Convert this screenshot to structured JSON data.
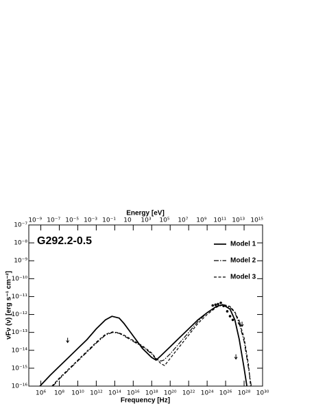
{
  "chart_data": {
    "type": "line",
    "xscale": "log",
    "yscale": "log",
    "annotation": "G292.2-0.5",
    "xlabel": "Frequency [Hz]",
    "ylabel": "νFν (ν) [erg s⁻¹ cm⁻²]",
    "x2label": "Energy [eV]",
    "xlim": [
      50000,
      1e+30
    ],
    "ylim": [
      1e-16,
      1e-07
    ],
    "x2lim": [
      2.07e-10,
      4140000000000000.0
    ],
    "xticks": [
      {
        "value": 1000000.0,
        "label": "10⁶"
      },
      {
        "value": 100000000.0,
        "label": "10⁸"
      },
      {
        "value": 10000000000.0,
        "label": "10¹⁰"
      },
      {
        "value": 1000000000000.0,
        "label": "10¹²"
      },
      {
        "value": 100000000000000.0,
        "label": "10¹⁴"
      },
      {
        "value": 1e+16,
        "label": "10¹⁶"
      },
      {
        "value": 1e+18,
        "label": "10¹⁸"
      },
      {
        "value": 1e+20,
        "label": "10²⁰"
      },
      {
        "value": 1e+22,
        "label": "10²²"
      },
      {
        "value": 1e+24,
        "label": "10²⁴"
      },
      {
        "value": 1e+26,
        "label": "10²⁶"
      },
      {
        "value": 1e+28,
        "label": "10²⁸"
      },
      {
        "value": 1e+30,
        "label": "10³⁰"
      }
    ],
    "x2ticks": [
      {
        "value": 1e-09,
        "label": "10⁻⁹"
      },
      {
        "value": 1e-07,
        "label": "10⁻⁷"
      },
      {
        "value": 1e-05,
        "label": "10⁻⁵"
      },
      {
        "value": 0.001,
        "label": "10⁻³"
      },
      {
        "value": 0.1,
        "label": "10⁻¹"
      },
      10,
      {
        "value": 1000,
        "label": "10³"
      },
      {
        "value": 100000,
        "label": "10⁵"
      },
      {
        "value": 10000000.0,
        "label": "10⁷"
      },
      {
        "value": 1000000000.0,
        "label": "10⁹"
      },
      {
        "value": 100000000000.0,
        "label": "10¹¹"
      },
      {
        "value": 10000000000000.0,
        "label": "10¹³"
      },
      {
        "value": 1000000000000000.0,
        "label": "10¹⁵"
      }
    ],
    "yticks": [
      {
        "value": 1e-16,
        "label": "10⁻¹⁶"
      },
      {
        "value": 1e-15,
        "label": "10⁻¹⁵"
      },
      {
        "value": 1e-14,
        "label": "10⁻¹⁴"
      },
      {
        "value": 1e-13,
        "label": "10⁻¹³"
      },
      {
        "value": 1e-12,
        "label": "10⁻¹²"
      },
      {
        "value": 1e-11,
        "label": "10⁻¹¹"
      },
      {
        "value": 1e-10,
        "label": "10⁻¹⁰"
      },
      {
        "value": 1e-09,
        "label": "10⁻⁹"
      },
      {
        "value": 1e-08,
        "label": "10⁻⁸"
      },
      {
        "value": 1e-07,
        "label": "10⁻⁷"
      }
    ],
    "legend": "upper right",
    "series": [
      {
        "name": "Model 1",
        "color": "#000000",
        "linestyle": "solid",
        "x": [
          800000.0,
          10000000.0,
          100000000.0,
          1000000000.0,
          10000000000.0,
          100000000000.0,
          1000000000000.0,
          10000000000000.0,
          50000000000000.0,
          300000000000000.0,
          1000000000000000.0,
          1e+16,
          1e+17,
          1e+18,
          3e+18,
          1e+19,
          1e+20,
          1e+21,
          1e+22,
          1e+23,
          1e+24,
          1e+25,
          5e+25,
          3e+26,
          1e+27,
          3e+27,
          1e+28,
          2e+28
        ],
        "values": [
          1e-16,
          3.98e-16,
          1.26e-15,
          3.98e-15,
          1.26e-14,
          3.98e-14,
          1.58e-13,
          5.01e-13,
          7.94e-13,
          6.31e-13,
          3.16e-13,
          6.31e-14,
          1.26e-14,
          3.98e-15,
          2.82e-15,
          5.01e-15,
          1.58e-14,
          5.01e-14,
          1.58e-13,
          5.01e-13,
          1.26e-12,
          2.82e-12,
          3.55e-12,
          2e-12,
          5.01e-13,
          3.98e-14,
          1e-15,
          1e-16
        ]
      },
      {
        "name": "Model 2",
        "color": "#000000",
        "linestyle": "dashdot",
        "x": [
          20000000.0,
          100000000.0,
          1000000000.0,
          10000000000.0,
          100000000000.0,
          1000000000000.0,
          10000000000000.0,
          60000000000000.0,
          300000000000000.0,
          1000000000000000.0,
          1e+16,
          1e+17,
          1e+18,
          3e+18,
          1e+19,
          2e+19,
          1e+20,
          1e+21,
          1e+22,
          1e+23,
          1e+24,
          1e+25,
          4e+25,
          3e+26,
          1e+27,
          3e+27,
          1e+28,
          3e+28,
          6e+28
        ],
        "values": [
          1e-16,
          2.51e-16,
          7.94e-16,
          2.51e-15,
          7.94e-15,
          2.51e-14,
          7.08e-14,
          1e-13,
          8.91e-14,
          6.31e-14,
          3.16e-14,
          1.58e-14,
          6.31e-15,
          3.16e-15,
          2.51e-15,
          2.82e-15,
          6.31e-15,
          2.51e-14,
          1e-13,
          3.98e-13,
          1.26e-12,
          2.82e-12,
          3.55e-12,
          2.51e-12,
          1.26e-12,
          3.16e-13,
          3.16e-14,
          1e-15,
          1e-16
        ]
      },
      {
        "name": "Model 3",
        "color": "#000000",
        "linestyle": "dashed",
        "x": [
          16000000.0,
          100000000.0,
          1000000000.0,
          10000000000.0,
          100000000000.0,
          1000000000000.0,
          10000000000000.0,
          60000000000000.0,
          300000000000000.0,
          1000000000000000.0,
          1e+16,
          1e+17,
          1e+18,
          3e+18,
          1e+19,
          2.5e+19,
          1e+20,
          1e+21,
          1e+22,
          1e+23,
          1e+24,
          1e+25,
          6e+25,
          3e+26,
          1e+27,
          3e+27,
          1e+28,
          3e+28,
          5e+28
        ],
        "values": [
          1e-16,
          2.82e-16,
          8.91e-16,
          2.82e-15,
          8.91e-15,
          2.82e-14,
          7.94e-14,
          1.07e-13,
          9.33e-14,
          7.08e-14,
          3.55e-14,
          1.78e-14,
          7.08e-15,
          3.55e-15,
          1.78e-15,
          1.41e-15,
          3.55e-15,
          1.58e-14,
          7.08e-14,
          3.16e-13,
          1e-12,
          2.51e-12,
          3.55e-12,
          2.82e-12,
          1.41e-12,
          3.98e-13,
          5.01e-14,
          1.58e-15,
          1e-16
        ]
      }
    ],
    "points": {
      "x": [
        4e+24,
        8e+24,
        1.5e+25,
        3e+25,
        6e+25,
        1.5e+26,
        3e+26,
        6e+26
      ],
      "values": [
        3.2e-12,
        3.5e-12,
        3.8e-12,
        4.5e-12,
        3e-12,
        1.5e-12,
        8e-13,
        5e-13
      ]
    },
    "upper_limits": {
      "x": [
        800000000.0,
        1.3e+27,
        3e+27,
        6e+27
      ],
      "values": [
        5e-14,
        6e-15,
        5e-13,
        4e-13
      ]
    }
  }
}
